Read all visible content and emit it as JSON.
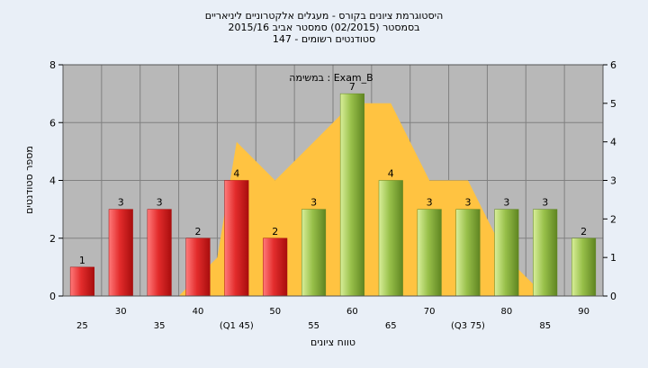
{
  "chart_data": {
    "type": "bar",
    "title_lines": [
      "היסטוגרמת ציונים בקורס - מעגלים אלקטרוניים ליניאריים",
      "בסמסטר   (02/2015)  סמסטר אביב 2015/16",
      "סטודנטים רשומים - 147"
    ],
    "assignment_label": "במשימה : Exam_B",
    "xlabel": "טווח ציונים",
    "ylabel": "מספר סטודנטים",
    "ylim": [
      0,
      8
    ],
    "y_ticks": [
      0,
      2,
      4,
      6,
      8
    ],
    "y2lim": [
      0,
      6
    ],
    "y2_ticks": [
      0,
      1,
      2,
      3,
      4,
      5,
      6
    ],
    "grid": true,
    "categories": [
      "25",
      "30",
      "35",
      "40",
      "(Q1 45)",
      "50",
      "55",
      "60",
      "65",
      "70",
      "(Q3 75)",
      "80",
      "85",
      "90"
    ],
    "values": [
      1,
      3,
      3,
      2,
      4,
      2,
      3,
      7,
      4,
      3,
      3,
      3,
      3,
      2
    ],
    "value_labels": [
      "1",
      "3",
      "3",
      "2",
      "4",
      "2",
      "3",
      "7",
      "4",
      "3",
      "3",
      "3",
      "3",
      "2"
    ],
    "bar_colors": [
      "red",
      "red",
      "red",
      "red",
      "red",
      "red",
      "green",
      "green",
      "green",
      "green",
      "green",
      "green",
      "green",
      "green"
    ],
    "area_series": {
      "axis": "right",
      "color": "#ffc341",
      "x_index": [
        -0.5,
        0.5,
        1.5,
        2.5,
        3.5,
        4,
        5,
        6,
        7,
        8,
        9,
        10,
        11,
        12,
        13,
        13.5
      ],
      "values": [
        0,
        0,
        0,
        0,
        1,
        4,
        3,
        4,
        5,
        5,
        3,
        3,
        1,
        0,
        0,
        0
      ]
    },
    "colors": {
      "red_light": "#ff7a7a",
      "red_mid": "#e32c2c",
      "red_dark": "#a80d0d",
      "green_light": "#d9ef9a",
      "green_mid": "#98c04a",
      "green_dark": "#5f8521",
      "plot_bg": "#b8b8b8",
      "grid": "#808080"
    }
  }
}
